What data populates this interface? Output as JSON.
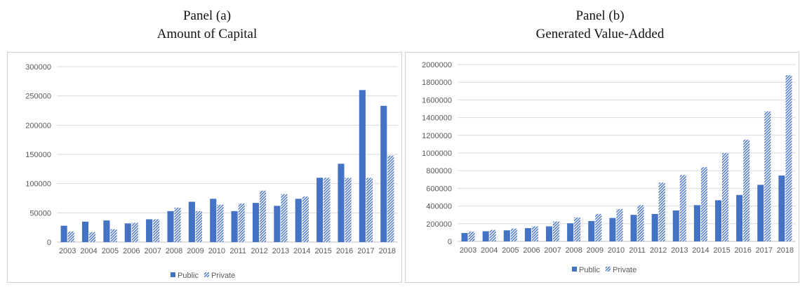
{
  "colors": {
    "public": "#4472C4",
    "private": "#4472C4",
    "grid": "#d9d9d9",
    "axis": "#bfbfbf"
  },
  "chart_data": [
    {
      "type": "bar",
      "panel": "Panel (a)",
      "title": "Amount of Capital",
      "categories": [
        "2003",
        "2004",
        "2005",
        "2006",
        "2007",
        "2008",
        "2009",
        "2010",
        "2011",
        "2012",
        "2013",
        "2014",
        "2015",
        "2016",
        "2017",
        "2018"
      ],
      "series": [
        {
          "name": "Public",
          "style": "solid",
          "values": [
            28000,
            35000,
            37000,
            32000,
            39000,
            53000,
            69000,
            74000,
            53000,
            67000,
            62000,
            74000,
            110000,
            134000,
            260000,
            233000
          ]
        },
        {
          "name": "Private",
          "style": "hatched",
          "values": [
            18000,
            17000,
            22000,
            33000,
            39000,
            59000,
            53000,
            64000,
            66000,
            88000,
            82000,
            78000,
            110000,
            110000,
            110000,
            148000
          ]
        }
      ],
      "yticks": [
        "0",
        "50000",
        "100000",
        "150000",
        "200000",
        "250000",
        "300000"
      ],
      "ylim": [
        0,
        300000
      ],
      "grid": true,
      "legend": "bottom"
    },
    {
      "type": "bar",
      "panel": "Panel (b)",
      "title": "Generated Value-Added",
      "categories": [
        "2003",
        "2004",
        "2005",
        "2006",
        "2007",
        "2008",
        "2009",
        "2010",
        "2011",
        "2012",
        "2013",
        "2014",
        "2015",
        "2016",
        "2017",
        "2018"
      ],
      "series": [
        {
          "name": "Public",
          "style": "solid",
          "values": [
            95000,
            115000,
            125000,
            150000,
            170000,
            205000,
            230000,
            265000,
            300000,
            310000,
            350000,
            410000,
            465000,
            525000,
            640000,
            745000
          ]
        },
        {
          "name": "Private",
          "style": "hatched",
          "values": [
            110000,
            130000,
            145000,
            170000,
            225000,
            270000,
            310000,
            365000,
            410000,
            665000,
            750000,
            840000,
            1000000,
            1150000,
            1470000,
            1880000
          ]
        }
      ],
      "yticks": [
        "0",
        "200000",
        "400000",
        "600000",
        "800000",
        "1000000",
        "1200000",
        "1400000",
        "1600000",
        "1800000",
        "2000000"
      ],
      "ylim": [
        0,
        2000000
      ],
      "grid": true,
      "legend": "bottom"
    }
  ]
}
